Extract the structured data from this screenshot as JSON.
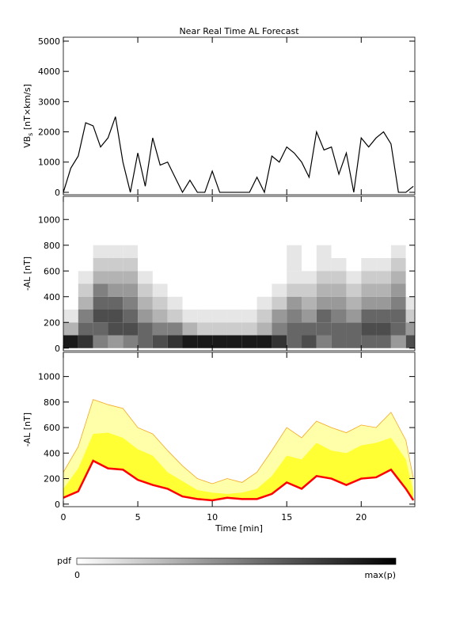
{
  "chart_data": [
    {
      "type": "line",
      "title": "Near Real Time AL Forecast",
      "y_label": {
        "text": "VB",
        "subscript": "s",
        "unit": " [nT×km/s]"
      },
      "x": [
        0,
        0.5,
        1,
        1.5,
        2,
        2.5,
        3,
        3.5,
        4,
        4.5,
        5,
        5.5,
        6,
        6.5,
        7,
        7.5,
        8,
        8.5,
        9,
        9.5,
        10,
        10.5,
        11,
        11.5,
        12,
        12.5,
        13,
        13.5,
        14,
        14.5,
        15,
        15.5,
        16,
        16.5,
        17,
        17.5,
        18,
        18.5,
        19,
        19.5,
        20,
        20.5,
        21,
        21.5,
        22,
        22.5,
        23,
        23.5
      ],
      "series": [
        {
          "color": "#000000",
          "values": [
            0,
            800,
            1200,
            2300,
            2200,
            1500,
            1800,
            2500,
            1000,
            0,
            1300,
            200,
            1800,
            900,
            1000,
            500,
            0,
            400,
            0,
            0,
            700,
            0,
            0,
            0,
            0,
            0,
            500,
            0,
            1200,
            1000,
            1500,
            1300,
            1000,
            500,
            2000,
            1400,
            1500,
            600,
            1300,
            0,
            1800,
            1500,
            1800,
            2000,
            1600,
            0,
            0,
            200
          ]
        }
      ],
      "xlim": [
        0,
        23.6
      ],
      "xticks": [
        0,
        5,
        10,
        15,
        20
      ],
      "ylim": [
        -80,
        5130
      ],
      "yticks": [
        0,
        1000,
        2000,
        3000,
        4000,
        5000
      ]
    },
    {
      "type": "heatmap",
      "y_label": "-AL [nT]",
      "xbins": [
        0,
        1,
        2,
        3,
        4,
        5,
        6,
        7,
        8,
        9,
        10,
        11,
        12,
        13,
        14,
        15,
        16,
        17,
        18,
        19,
        20,
        21,
        22,
        23,
        24
      ],
      "ybins": [
        0,
        100,
        200,
        300,
        400,
        500,
        600,
        700,
        800
      ],
      "z": [
        [
          0.9,
          0.8,
          0.5,
          0.4,
          0.5,
          0.6,
          0.7,
          0.8,
          0.9,
          0.9,
          0.9,
          0.9,
          0.9,
          0.9,
          0.8,
          0.6,
          0.7,
          0.5,
          0.6,
          0.6,
          0.6,
          0.6,
          0.4,
          0.7
        ],
        [
          0.3,
          0.6,
          0.6,
          0.7,
          0.7,
          0.6,
          0.5,
          0.5,
          0.3,
          0.2,
          0.2,
          0.2,
          0.2,
          0.3,
          0.5,
          0.6,
          0.6,
          0.6,
          0.6,
          0.6,
          0.7,
          0.7,
          0.6,
          0.4
        ],
        [
          0.1,
          0.5,
          0.7,
          0.7,
          0.6,
          0.4,
          0.3,
          0.2,
          0.1,
          0.1,
          0.1,
          0.1,
          0.1,
          0.2,
          0.4,
          0.5,
          0.4,
          0.6,
          0.5,
          0.4,
          0.6,
          0.6,
          0.6,
          0.2
        ],
        [
          0,
          0.3,
          0.6,
          0.6,
          0.5,
          0.3,
          0.2,
          0.1,
          0,
          0,
          0,
          0,
          0,
          0.1,
          0.2,
          0.4,
          0.3,
          0.4,
          0.4,
          0.3,
          0.4,
          0.4,
          0.5,
          0.1
        ],
        [
          0,
          0.2,
          0.5,
          0.4,
          0.4,
          0.2,
          0.1,
          0,
          0,
          0,
          0,
          0,
          0,
          0,
          0.1,
          0.2,
          0.2,
          0.3,
          0.3,
          0.2,
          0.3,
          0.3,
          0.4,
          0
        ],
        [
          0,
          0.1,
          0.3,
          0.3,
          0.3,
          0.1,
          0,
          0,
          0,
          0,
          0,
          0,
          0,
          0,
          0,
          0.1,
          0.1,
          0.2,
          0.2,
          0.1,
          0.2,
          0.2,
          0.3,
          0
        ],
        [
          0,
          0,
          0.2,
          0.2,
          0.2,
          0,
          0,
          0,
          0,
          0,
          0,
          0,
          0,
          0,
          0,
          0.1,
          0,
          0.1,
          0.1,
          0,
          0.1,
          0.1,
          0.2,
          0
        ],
        [
          0,
          0,
          0.1,
          0.1,
          0.1,
          0,
          0,
          0,
          0,
          0,
          0,
          0,
          0,
          0,
          0,
          0.1,
          0,
          0.1,
          0,
          0,
          0,
          0,
          0.1,
          0
        ]
      ],
      "xlim": [
        0,
        23.6
      ],
      "xticks": [
        0,
        5,
        10,
        15,
        20
      ],
      "ylim": [
        -20,
        1180
      ],
      "yticks": [
        0,
        200,
        400,
        600,
        800,
        1000
      ]
    },
    {
      "type": "band",
      "y_label": "-AL [nT]",
      "x_label": "Time [min]",
      "x": [
        0,
        1,
        2,
        3,
        4,
        5,
        6,
        7,
        8,
        9,
        10,
        11,
        12,
        13,
        14,
        15,
        16,
        17,
        18,
        19,
        20,
        21,
        22,
        23,
        23.5
      ],
      "median": {
        "color": "#ff0000",
        "values": [
          50,
          100,
          340,
          280,
          270,
          190,
          150,
          120,
          60,
          40,
          30,
          50,
          40,
          40,
          80,
          170,
          120,
          220,
          200,
          150,
          200,
          210,
          270,
          120,
          30
        ]
      },
      "upper": {
        "color": "#ffff33",
        "values": [
          120,
          280,
          550,
          560,
          520,
          430,
          380,
          250,
          180,
          110,
          90,
          80,
          90,
          120,
          220,
          380,
          350,
          480,
          420,
          400,
          460,
          480,
          520,
          350,
          100
        ]
      },
      "outer": {
        "color": "#f5a623",
        "fill": "#ffffaa",
        "values": [
          250,
          450,
          820,
          780,
          750,
          600,
          550,
          420,
          300,
          200,
          160,
          200,
          170,
          250,
          420,
          600,
          520,
          650,
          600,
          560,
          620,
          600,
          720,
          500,
          200
        ]
      },
      "xlim": [
        0,
        23.6
      ],
      "xticks": [
        0,
        5,
        10,
        15,
        20
      ],
      "ylim": [
        -20,
        1190
      ],
      "yticks": [
        0,
        200,
        400,
        600,
        800,
        1000
      ]
    },
    {
      "type": "colorbar",
      "label": "pdf",
      "min_label": "0",
      "max_label": "max(p)"
    }
  ]
}
